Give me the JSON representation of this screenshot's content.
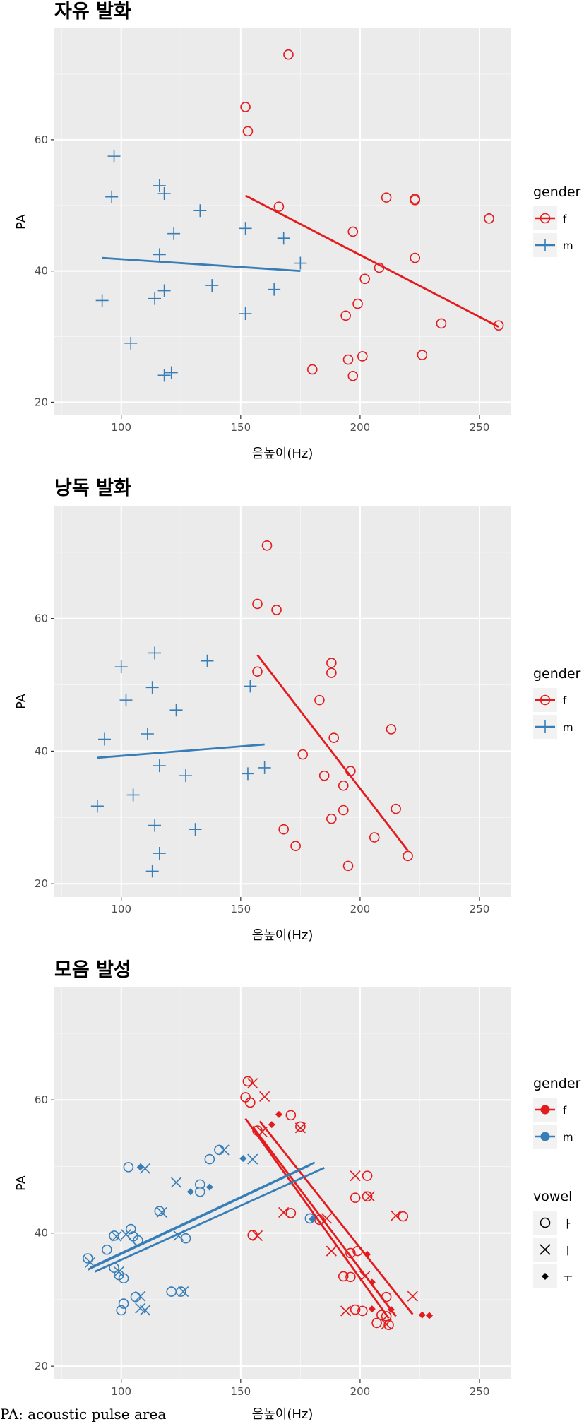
{
  "chart_data": [
    {
      "type": "scatter",
      "title": "자유 발화",
      "xlabel": "음높이(Hz)",
      "ylabel": "PA",
      "xlim": [
        72,
        263
      ],
      "ylim": [
        18,
        77
      ],
      "xticks": [
        100,
        150,
        200,
        250
      ],
      "yticks": [
        20,
        40,
        60
      ],
      "x_tick_labels": [
        "100",
        "150",
        "200",
        "250"
      ],
      "y_tick_labels": [
        "20",
        "40",
        "60"
      ],
      "grid": true,
      "legend": {
        "placement": "right",
        "title": "gender",
        "entries": [
          {
            "label": "f",
            "color": "#e41a1c",
            "shape": "circle"
          },
          {
            "label": "m",
            "color": "#377eb8",
            "shape": "plus"
          }
        ]
      },
      "series": [
        {
          "name": "f",
          "color": "#e41a1c",
          "shape": "circle",
          "points": [
            [
              170,
              73
            ],
            [
              152,
              65
            ],
            [
              153,
              61.3
            ],
            [
              166,
              49.8
            ],
            [
              197,
              46
            ],
            [
              211,
              51.2
            ],
            [
              223,
              51
            ],
            [
              223,
              50.8
            ],
            [
              254,
              48
            ],
            [
              223,
              42
            ],
            [
              208,
              40.5
            ],
            [
              202,
              38.8
            ],
            [
              194,
              33.2
            ],
            [
              199,
              35
            ],
            [
              234,
              32
            ],
            [
              258,
              31.7
            ],
            [
              195,
              26.5
            ],
            [
              201,
              27
            ],
            [
              226,
              27.2
            ],
            [
              180,
              25
            ],
            [
              197,
              24
            ]
          ],
          "fit": [
            [
              152,
              51.5
            ],
            [
              258,
              31.5
            ]
          ]
        },
        {
          "name": "m",
          "color": "#377eb8",
          "shape": "plus",
          "points": [
            [
              97,
              57.5
            ],
            [
              96,
              51.3
            ],
            [
              116,
              53
            ],
            [
              118,
              51.8
            ],
            [
              133,
              49.2
            ],
            [
              122,
              45.7
            ],
            [
              152,
              46.5
            ],
            [
              168,
              45
            ],
            [
              116,
              42.5
            ],
            [
              175,
              41.2
            ],
            [
              92,
              35.5
            ],
            [
              114,
              35.8
            ],
            [
              118,
              37
            ],
            [
              138,
              37.8
            ],
            [
              164,
              37.2
            ],
            [
              152,
              33.5
            ],
            [
              104,
              29
            ],
            [
              118,
              24.1
            ],
            [
              121,
              24.5
            ]
          ],
          "fit": [
            [
              92,
              42
            ],
            [
              175,
              40
            ]
          ]
        }
      ]
    },
    {
      "type": "scatter",
      "title": "낭독 발화",
      "xlabel": "음높이(Hz)",
      "ylabel": "PA",
      "xlim": [
        72,
        263
      ],
      "ylim": [
        18,
        77
      ],
      "xticks": [
        100,
        150,
        200,
        250
      ],
      "yticks": [
        20,
        40,
        60
      ],
      "x_tick_labels": [
        "100",
        "150",
        "200",
        "250"
      ],
      "y_tick_labels": [
        "20",
        "40",
        "60"
      ],
      "grid": true,
      "legend": {
        "placement": "right",
        "title": "gender",
        "entries": [
          {
            "label": "f",
            "color": "#e41a1c",
            "shape": "circle"
          },
          {
            "label": "m",
            "color": "#377eb8",
            "shape": "plus"
          }
        ]
      },
      "series": [
        {
          "name": "f",
          "color": "#e41a1c",
          "shape": "circle",
          "points": [
            [
              161,
              71
            ],
            [
              157,
              62.2
            ],
            [
              165,
              61.3
            ],
            [
              157,
              52
            ],
            [
              188,
              53.3
            ],
            [
              188,
              51.8
            ],
            [
              183,
              47.7
            ],
            [
              213,
              43.3
            ],
            [
              189,
              42
            ],
            [
              176,
              39.5
            ],
            [
              185,
              36.3
            ],
            [
              196,
              37
            ],
            [
              193,
              34.8
            ],
            [
              193,
              31.1
            ],
            [
              215,
              31.3
            ],
            [
              188,
              29.8
            ],
            [
              168,
              28.2
            ],
            [
              173,
              25.7
            ],
            [
              206,
              27
            ],
            [
              220,
              24.2
            ],
            [
              195,
              22.7
            ]
          ],
          "fit": [
            [
              157,
              54.5
            ],
            [
              220,
              25
            ]
          ]
        },
        {
          "name": "m",
          "color": "#377eb8",
          "shape": "plus",
          "points": [
            [
              114,
              54.8
            ],
            [
              136,
              53.6
            ],
            [
              100,
              52.7
            ],
            [
              113,
              49.6
            ],
            [
              154,
              49.8
            ],
            [
              102,
              47.7
            ],
            [
              123,
              46.2
            ],
            [
              93,
              41.8
            ],
            [
              111,
              42.6
            ],
            [
              116,
              37.8
            ],
            [
              127,
              36.3
            ],
            [
              153,
              36.6
            ],
            [
              160,
              37.5
            ],
            [
              105,
              33.4
            ],
            [
              90,
              31.7
            ],
            [
              114,
              28.8
            ],
            [
              131,
              28.2
            ],
            [
              116,
              24.6
            ],
            [
              113,
              21.9
            ]
          ],
          "fit": [
            [
              90,
              39
            ],
            [
              160,
              41
            ]
          ]
        }
      ]
    },
    {
      "type": "scatter",
      "title": "모음 발성",
      "xlabel": "음높이(Hz)",
      "ylabel": "PA",
      "xlim": [
        72,
        263
      ],
      "ylim": [
        18,
        77
      ],
      "xticks": [
        100,
        150,
        200,
        250
      ],
      "yticks": [
        20,
        40,
        60
      ],
      "x_tick_labels": [
        "100",
        "150",
        "200",
        "250"
      ],
      "y_tick_labels": [
        "20",
        "40",
        "60"
      ],
      "grid": true,
      "legend": {
        "placement": "right",
        "title": "gender",
        "entries": [
          {
            "label": "f",
            "color": "#e41a1c",
            "shape": "dot"
          },
          {
            "label": "m",
            "color": "#377eb8",
            "shape": "dot"
          }
        ]
      },
      "legend2": {
        "placement": "right",
        "title": "vowel",
        "entries": [
          {
            "label": "ㅏ",
            "shape": "circle"
          },
          {
            "label": "ㅣ",
            "shape": "cross"
          },
          {
            "label": "ㅜ",
            "shape": "diamond"
          }
        ]
      },
      "series": [
        {
          "name": "f",
          "color": "#e41a1c",
          "points": [
            [
              153,
              62.8,
              "circle"
            ],
            [
              155,
              62.5,
              "cross"
            ],
            [
              152,
              60.4,
              "circle"
            ],
            [
              154,
              59.6,
              "circle"
            ],
            [
              160,
              60.5,
              "cross"
            ],
            [
              157,
              55.4,
              "circle"
            ],
            [
              159,
              55.2,
              "cross"
            ],
            [
              166,
              57.8,
              "diamond"
            ],
            [
              171,
              57.7,
              "circle"
            ],
            [
              175,
              56,
              "circle"
            ],
            [
              175,
              55.8,
              "cross"
            ],
            [
              163,
              56.3,
              "diamond"
            ],
            [
              155,
              39.7,
              "circle"
            ],
            [
              157,
              39.6,
              "cross"
            ],
            [
              168,
              43.1,
              "cross"
            ],
            [
              171,
              43,
              "circle"
            ],
            [
              183,
              42,
              "circle"
            ],
            [
              186,
              42.2,
              "cross"
            ],
            [
              188,
              37.3,
              "cross"
            ],
            [
              198,
              45.3,
              "circle"
            ],
            [
              198,
              48.6,
              "cross"
            ],
            [
              203,
              48.6,
              "circle"
            ],
            [
              203,
              45.5,
              "circle"
            ],
            [
              204,
              45.5,
              "cross"
            ],
            [
              215,
              42.6,
              "cross"
            ],
            [
              218,
              42.5,
              "circle"
            ],
            [
              196,
              37,
              "circle"
            ],
            [
              199,
              37.3,
              "circle"
            ],
            [
              203,
              36.8,
              "diamond"
            ],
            [
              193,
              33.5,
              "circle"
            ],
            [
              196,
              33.4,
              "circle"
            ],
            [
              202,
              33.5,
              "cross"
            ],
            [
              205,
              32.6,
              "diamond"
            ],
            [
              211,
              30.4,
              "circle"
            ],
            [
              222,
              30.5,
              "cross"
            ],
            [
              194,
              28.3,
              "cross"
            ],
            [
              198,
              28.5,
              "circle"
            ],
            [
              201,
              28.3,
              "circle"
            ],
            [
              205,
              28.6,
              "diamond"
            ],
            [
              209,
              27.7,
              "circle"
            ],
            [
              211,
              27.5,
              "circle"
            ],
            [
              213,
              28.5,
              "diamond"
            ],
            [
              207,
              26.5,
              "circle"
            ],
            [
              211,
              26.3,
              "cross"
            ],
            [
              212,
              26.2,
              "circle"
            ],
            [
              226,
              27.7,
              "diamond"
            ],
            [
              229,
              27.6,
              "diamond"
            ]
          ],
          "fits": [
            [
              [
                152,
                57.2
              ],
              [
                212,
                27.2
              ]
            ],
            [
              [
                155,
                56
              ],
              [
                215,
                27.5
              ]
            ],
            [
              [
                158,
                56.8
              ],
              [
                222,
                27.8
              ]
            ]
          ]
        },
        {
          "name": "m",
          "color": "#377eb8",
          "points": [
            [
              86,
              36.2,
              "circle"
            ],
            [
              87,
              35.6,
              "cross"
            ],
            [
              94,
              37.5,
              "circle"
            ],
            [
              97,
              34.8,
              "circle"
            ],
            [
              99,
              34.2,
              "cross"
            ],
            [
              97,
              39.6,
              "circle"
            ],
            [
              98,
              39.5,
              "cross"
            ],
            [
              102,
              39.8,
              "cross"
            ],
            [
              104,
              40.6,
              "circle"
            ],
            [
              105,
              39.5,
              "circle"
            ],
            [
              107,
              38.9,
              "circle"
            ],
            [
              99,
              33.7,
              "circle"
            ],
            [
              101,
              33.2,
              "circle"
            ],
            [
              100,
              28.4,
              "circle"
            ],
            [
              101,
              29.4,
              "circle"
            ],
            [
              106,
              30.4,
              "circle"
            ],
            [
              108,
              30.5,
              "cross"
            ],
            [
              108,
              28.7,
              "cross"
            ],
            [
              110,
              28.4,
              "cross"
            ],
            [
              103,
              49.9,
              "circle"
            ],
            [
              108,
              49.9,
              "diamond"
            ],
            [
              110,
              49.7,
              "cross"
            ],
            [
              116,
              43.3,
              "circle"
            ],
            [
              117,
              43.1,
              "cross"
            ],
            [
              121,
              31.2,
              "circle"
            ],
            [
              125,
              31.2,
              "circle"
            ],
            [
              126,
              31.2,
              "cross"
            ],
            [
              124,
              39.6,
              "cross"
            ],
            [
              127,
              39.2,
              "circle"
            ],
            [
              123,
              47.6,
              "cross"
            ],
            [
              129,
              46.2,
              "diamond"
            ],
            [
              133,
              46.2,
              "circle"
            ],
            [
              133,
              47.3,
              "circle"
            ],
            [
              137,
              46.9,
              "diamond"
            ],
            [
              137,
              51.1,
              "circle"
            ],
            [
              141,
              52.5,
              "circle"
            ],
            [
              143,
              52.5,
              "cross"
            ],
            [
              151,
              51.2,
              "diamond"
            ],
            [
              155,
              51.1,
              "cross"
            ],
            [
              179,
              42.2,
              "circle"
            ],
            [
              180,
              42.1,
              "diamond"
            ]
          ],
          "fits": [
            [
              [
                86,
                34.5
              ],
              [
                179,
                50.2
              ]
            ],
            [
              [
                87,
                34.8
              ],
              [
                181,
                50.6
              ]
            ],
            [
              [
                89,
                34.2
              ],
              [
                185,
                49.8
              ]
            ]
          ]
        }
      ]
    }
  ],
  "caption": "PA: acoustic pulse area"
}
